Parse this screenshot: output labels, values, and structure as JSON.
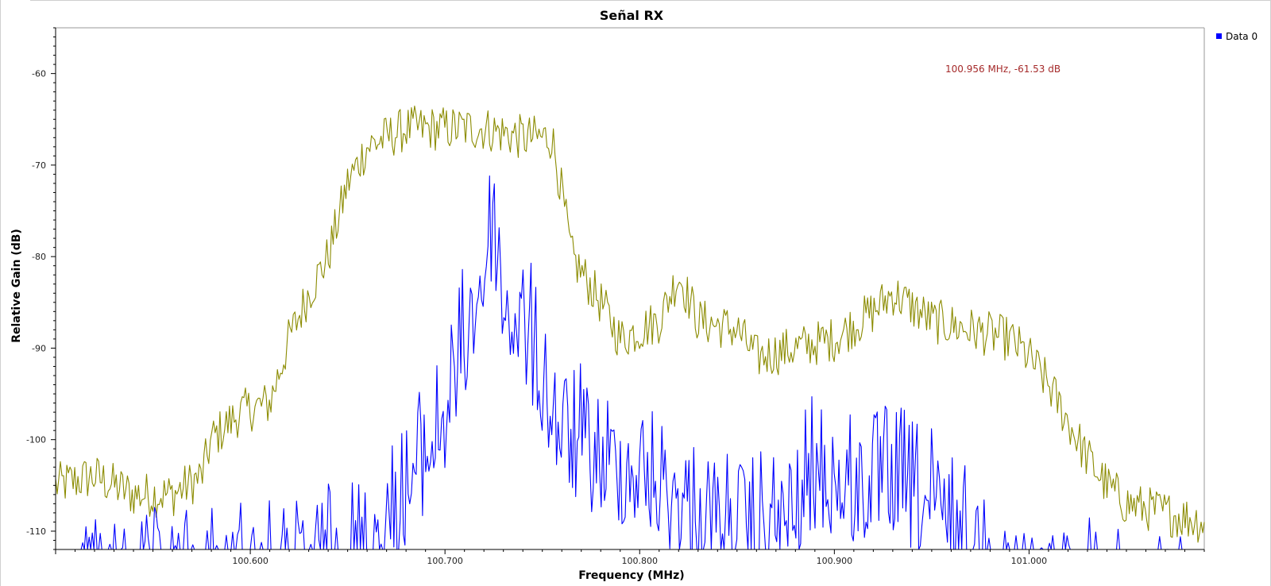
{
  "chart_data": {
    "type": "line",
    "title": "Señal RX",
    "xlabel": "Frequency (MHz)",
    "ylabel": "Relative Gain (dB)",
    "xlim": [
      100.5,
      101.09
    ],
    "ylim": [
      -112,
      -55
    ],
    "xticks": [
      100.6,
      100.7,
      100.8,
      100.9,
      101.0
    ],
    "xtick_labels": [
      "100.600",
      "100.700",
      "100.800",
      "100.900",
      "101.000"
    ],
    "yticks": [
      -60,
      -70,
      -80,
      -90,
      -100,
      -110
    ],
    "ytick_labels": [
      "-60",
      "-70",
      "-80",
      "-90",
      "-100",
      "-110"
    ],
    "grid": false,
    "legend": {
      "position": "top-right",
      "entries": [
        {
          "label": "Data 0",
          "color": "#0000ff"
        }
      ]
    },
    "marker_annotation": "100.956 MHz, -61.53 dB",
    "series": [
      {
        "name": "Data 0",
        "color": "#0000ff",
        "x_range": [
          100.5,
          101.09
        ],
        "envelope": [
          [
            100.5,
            -110
          ],
          [
            100.53,
            -110
          ],
          [
            100.56,
            -109
          ],
          [
            100.59,
            -107
          ],
          [
            100.62,
            -108
          ],
          [
            100.65,
            -105
          ],
          [
            100.67,
            -102
          ],
          [
            100.685,
            -96
          ],
          [
            100.7,
            -90
          ],
          [
            100.71,
            -82
          ],
          [
            100.72,
            -74
          ],
          [
            100.725,
            -68
          ],
          [
            100.73,
            -78
          ],
          [
            100.74,
            -80
          ],
          [
            100.75,
            -86
          ],
          [
            100.76,
            -92
          ],
          [
            100.78,
            -95
          ],
          [
            100.8,
            -96
          ],
          [
            100.82,
            -99
          ],
          [
            100.84,
            -102
          ],
          [
            100.86,
            -103
          ],
          [
            100.88,
            -101
          ],
          [
            100.89,
            -96
          ],
          [
            100.91,
            -98
          ],
          [
            100.93,
            -97
          ],
          [
            100.95,
            -100
          ],
          [
            100.97,
            -104
          ],
          [
            100.99,
            -109
          ],
          [
            101.02,
            -110
          ],
          [
            101.05,
            -111
          ],
          [
            101.09,
            -112
          ]
        ]
      },
      {
        "color": "#8b8b00",
        "x_range": [
          100.5,
          101.09
        ],
        "envelope": [
          [
            100.5,
            -105
          ],
          [
            100.52,
            -104
          ],
          [
            100.54,
            -106
          ],
          [
            100.56,
            -106
          ],
          [
            100.575,
            -104
          ],
          [
            100.58,
            -100
          ],
          [
            100.595,
            -97
          ],
          [
            100.61,
            -96
          ],
          [
            100.62,
            -89
          ],
          [
            100.63,
            -84
          ],
          [
            100.64,
            -80
          ],
          [
            100.65,
            -72
          ],
          [
            100.66,
            -68
          ],
          [
            100.68,
            -66
          ],
          [
            100.7,
            -66
          ],
          [
            100.72,
            -66
          ],
          [
            100.74,
            -67
          ],
          [
            100.755,
            -67
          ],
          [
            100.76,
            -73
          ],
          [
            100.765,
            -80
          ],
          [
            100.78,
            -85
          ],
          [
            100.79,
            -89
          ],
          [
            100.8,
            -88
          ],
          [
            100.81,
            -87
          ],
          [
            100.82,
            -82
          ],
          [
            100.83,
            -87
          ],
          [
            100.85,
            -88
          ],
          [
            100.86,
            -91
          ],
          [
            100.88,
            -90
          ],
          [
            100.9,
            -89
          ],
          [
            100.92,
            -86
          ],
          [
            100.93,
            -84
          ],
          [
            100.95,
            -87
          ],
          [
            100.97,
            -88
          ],
          [
            100.99,
            -89
          ],
          [
            101.0,
            -91
          ],
          [
            101.01,
            -94
          ],
          [
            101.02,
            -98
          ],
          [
            101.03,
            -102
          ],
          [
            101.04,
            -105
          ],
          [
            101.05,
            -107
          ],
          [
            101.07,
            -108
          ],
          [
            101.09,
            -109
          ]
        ]
      }
    ]
  }
}
